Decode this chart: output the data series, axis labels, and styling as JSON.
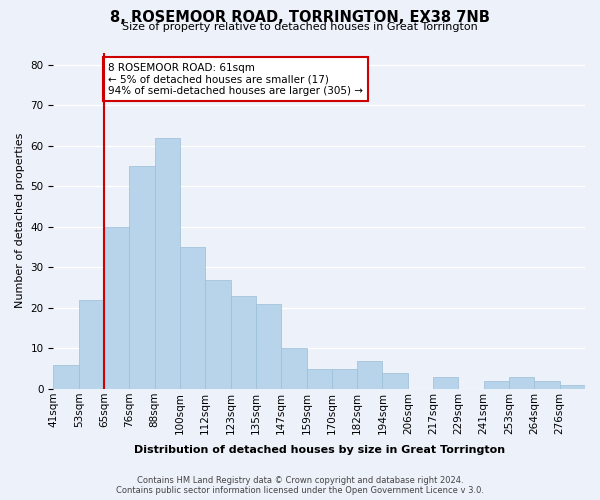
{
  "title": "8, ROSEMOOR ROAD, TORRINGTON, EX38 7NB",
  "subtitle": "Size of property relative to detached houses in Great Torrington",
  "xlabel": "Distribution of detached houses by size in Great Torrington",
  "ylabel": "Number of detached properties",
  "footer_line1": "Contains HM Land Registry data © Crown copyright and database right 2024.",
  "footer_line2": "Contains public sector information licensed under the Open Government Licence v 3.0.",
  "categories": [
    "41sqm",
    "53sqm",
    "65sqm",
    "76sqm",
    "88sqm",
    "100sqm",
    "112sqm",
    "123sqm",
    "135sqm",
    "147sqm",
    "159sqm",
    "170sqm",
    "182sqm",
    "194sqm",
    "206sqm",
    "217sqm",
    "229sqm",
    "241sqm",
    "253sqm",
    "264sqm",
    "276sqm"
  ],
  "values": [
    6,
    22,
    40,
    55,
    62,
    35,
    27,
    23,
    21,
    10,
    5,
    5,
    7,
    4,
    0,
    3,
    0,
    2,
    3,
    2,
    1
  ],
  "bar_color": "#b8d4ea",
  "bar_edge_color": "#9bbdd8",
  "property_line_color": "#cc0000",
  "property_line_cat_index": 2,
  "annotation_text": "8 ROSEMOOR ROAD: 61sqm\n← 5% of detached houses are smaller (17)\n94% of semi-detached houses are larger (305) →",
  "annotation_box_color": "#ffffff",
  "annotation_box_edge": "#cc0000",
  "ylim": [
    0,
    83
  ],
  "yticks": [
    0,
    10,
    20,
    30,
    40,
    50,
    60,
    70,
    80
  ],
  "background_color": "#edf1f9",
  "grid_color": "#ffffff",
  "title_fontsize": 10.5,
  "subtitle_fontsize": 8,
  "axis_label_fontsize": 8,
  "tick_fontsize": 7.5,
  "annotation_fontsize": 7.5,
  "footer_fontsize": 6
}
